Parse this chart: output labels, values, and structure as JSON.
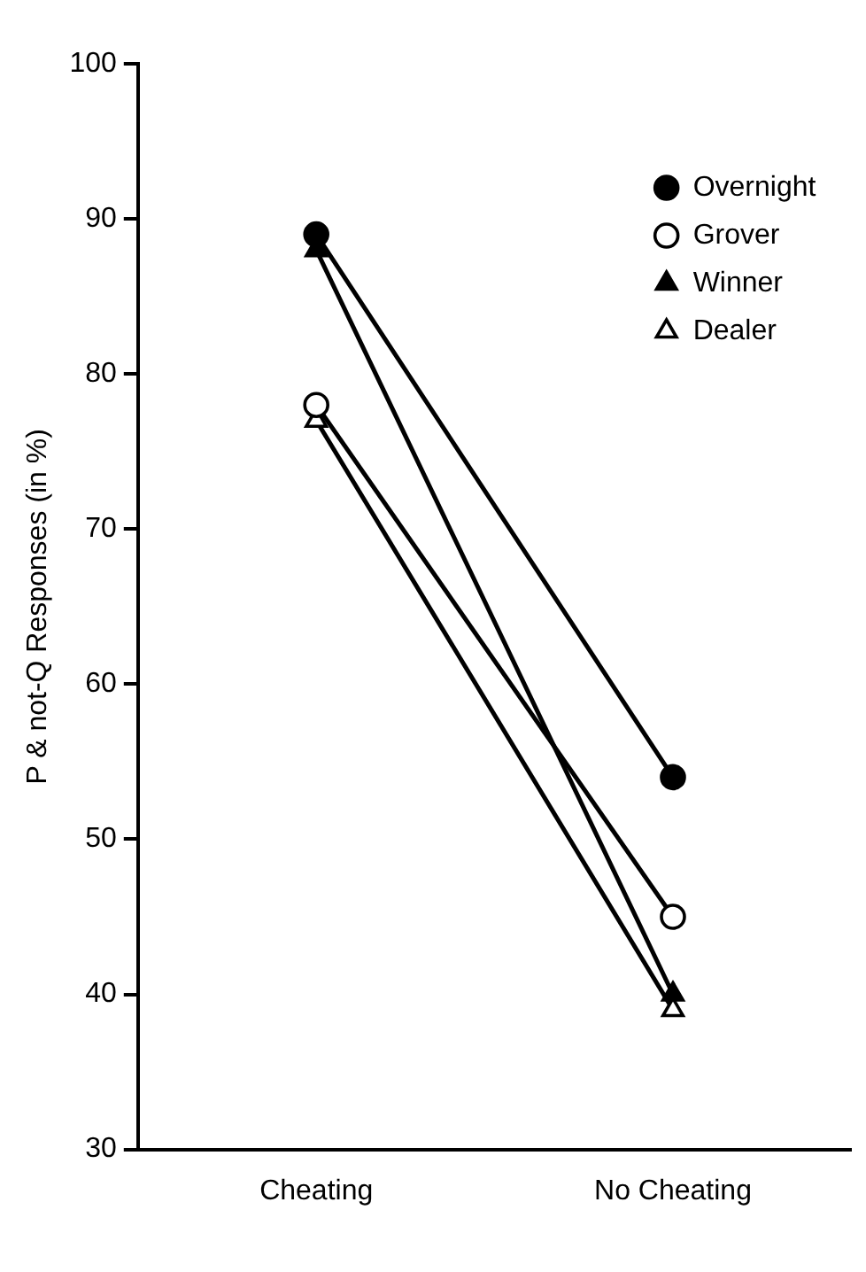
{
  "chart_data": {
    "type": "line",
    "ylabel": "P & not-Q Responses (in %)",
    "categories": [
      "Cheating",
      "No Cheating"
    ],
    "series": [
      {
        "name": "Overnight",
        "color": "#000000",
        "marker": "circle",
        "values": [
          89,
          54
        ]
      },
      {
        "name": "Grover",
        "color": "#000000",
        "marker": "circle",
        "values": [
          78,
          45
        ]
      },
      {
        "name": "Winner",
        "color": "#000000",
        "marker": "triangle",
        "values": [
          88,
          40
        ]
      },
      {
        "name": "Dealer",
        "color": "#000000",
        "marker": "triangle",
        "values": [
          77,
          39
        ]
      }
    ],
    "ylim": [
      30,
      100
    ],
    "yticks": [
      30,
      40,
      50,
      60,
      70,
      80,
      90,
      100
    ],
    "grid": false,
    "legend": "top right",
    "line_style": "solid"
  }
}
